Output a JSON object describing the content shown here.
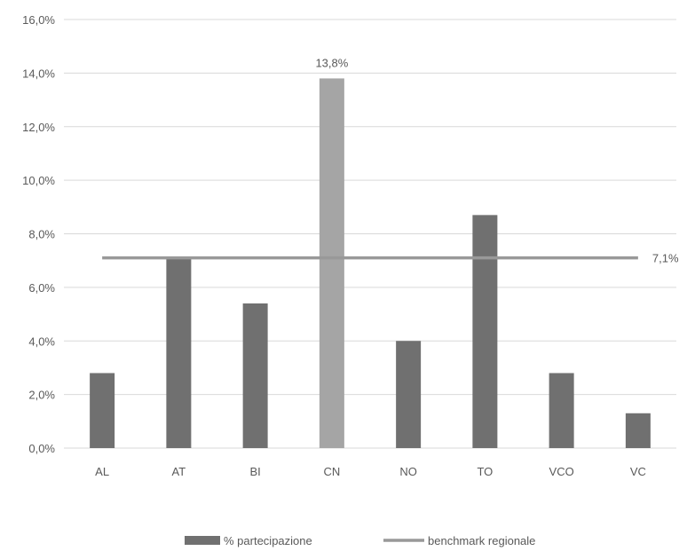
{
  "chart_data": {
    "type": "bar",
    "categories": [
      "AL",
      "AT",
      "BI",
      "CN",
      "NO",
      "TO",
      "VCO",
      "VC"
    ],
    "series": [
      {
        "name": "% partecipazione",
        "kind": "bar",
        "values": [
          2.8,
          7.1,
          5.4,
          13.8,
          4.0,
          8.7,
          2.8,
          1.3
        ],
        "highlight_index": 3
      },
      {
        "name": "benchmark regionale",
        "kind": "line",
        "value": 7.1
      }
    ],
    "data_labels": [
      {
        "category": "CN",
        "text": "13,8%"
      },
      {
        "series": "benchmark regionale",
        "text": "7,1%"
      }
    ],
    "y_ticks": [
      "0,0%",
      "2,0%",
      "4,0%",
      "6,0%",
      "8,0%",
      "10,0%",
      "12,0%",
      "14,0%",
      "16,0%"
    ],
    "ylim": [
      0,
      16
    ],
    "grid": true,
    "legend_position": "bottom",
    "colors": {
      "bar": "#707070",
      "bar_highlight": "#a5a5a5",
      "line": "#999999",
      "grid": "#d9d9d9",
      "text": "#595959"
    }
  }
}
